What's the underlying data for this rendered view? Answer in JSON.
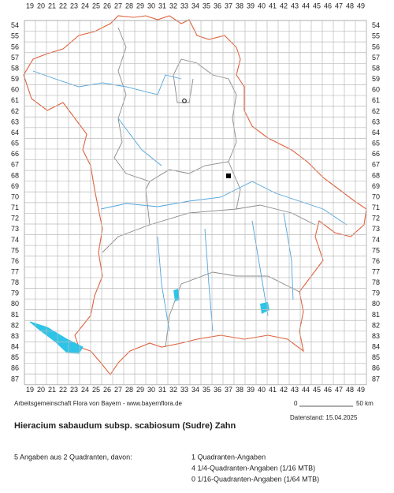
{
  "map": {
    "columns": [
      19,
      20,
      21,
      22,
      23,
      24,
      25,
      26,
      27,
      28,
      29,
      30,
      31,
      32,
      33,
      34,
      35,
      36,
      37,
      38,
      39,
      40,
      41,
      42,
      43,
      44,
      45,
      46,
      47,
      48,
      49
    ],
    "rows": [
      54,
      55,
      56,
      57,
      58,
      59,
      60,
      61,
      62,
      63,
      64,
      65,
      66,
      67,
      68,
      69,
      70,
      71,
      72,
      73,
      74,
      75,
      76,
      77,
      78,
      79,
      80,
      81,
      82,
      83,
      84,
      85,
      86,
      87
    ],
    "records": [
      {
        "column": 33,
        "row": 61,
        "symbol": "open-circle"
      },
      {
        "column": 37,
        "row": 68,
        "symbol": "filled-square"
      }
    ]
  },
  "footer": {
    "credit": "Arbeitsgemeinschaft Flora von Bayern - www.bayernflora.de",
    "scale_start": "0",
    "scale_end": "50 km",
    "date": "Datenstand: 15.04.2025",
    "title": "Hieracium sabaudum subsp. scabiosum (Sudre) Zahn",
    "summary": "5 Angaben aus 2 Quadranten, davon:",
    "details": [
      "1 Quadranten-Angaben",
      "4 1/4-Quadranten-Angaben (1/16 MTB)",
      "0 1/16-Quadranten-Angaben (1/64 MTB)"
    ]
  }
}
